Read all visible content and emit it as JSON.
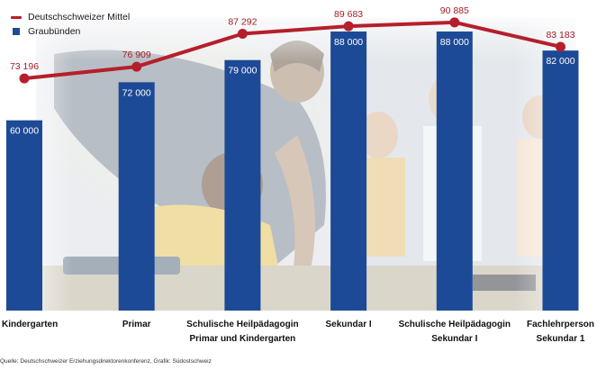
{
  "chart_data": {
    "type": "bar",
    "categories": [
      [
        "Kindergarten"
      ],
      [
        "Primar"
      ],
      [
        "Schulische Heilpädagogin",
        "Primar und Kindergarten"
      ],
      [
        "Sekundar I"
      ],
      [
        "Schulische Heilpädagogin",
        "Sekundar I"
      ],
      [
        "Fachlehrperson",
        "Sekundar 1"
      ]
    ],
    "series": [
      {
        "name": "Graubünden",
        "kind": "bar",
        "values": [
          60000,
          72000,
          79000,
          88000,
          88000,
          82000
        ],
        "labels": [
          "60 000",
          "72 000",
          "79 000",
          "88 000",
          "88 000",
          "82 000"
        ]
      },
      {
        "name": "Deutschschweizer Mittel",
        "kind": "line",
        "values": [
          73196,
          76909,
          87292,
          89683,
          90885,
          83183
        ],
        "labels": [
          "73 196",
          "76 909",
          "87 292",
          "89 683",
          "90 885",
          "83 183"
        ]
      }
    ],
    "ylim": [
      0,
      95000
    ],
    "title": "",
    "xlabel": "",
    "ylabel": ""
  },
  "legend": {
    "line_label": "Deutschschweizer Mittel",
    "bar_label": "Graubünden"
  },
  "source": "Quelle: Deutschschweizer Erziehungsdirektorenkonferenz, Grafik: Südostschweiz",
  "colors": {
    "bar": "#1d4a96",
    "line": "#b51f2b",
    "line_label": "#a61c25",
    "bar_label": "#ffffff",
    "category_text": "#111111"
  },
  "background_image": "classroom photo: teacher leaning over student at desk, faded"
}
